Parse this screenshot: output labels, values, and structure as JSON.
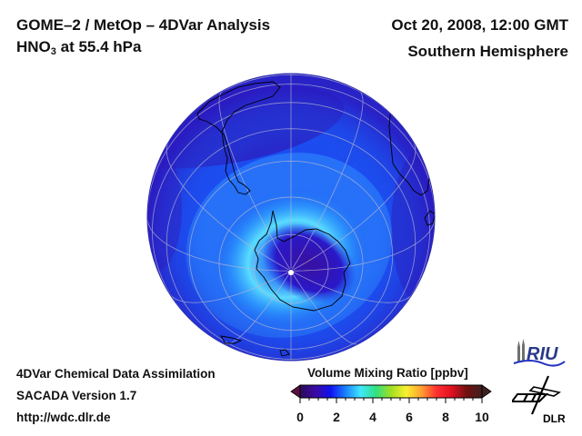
{
  "header": {
    "title_line1": "GOME–2 / MetOp – 4DVar Analysis",
    "species_main": "HNO",
    "species_sub": "3",
    "species_rest": " at 55.4 hPa",
    "datetime": "Oct 20, 2008, 12:00 GMT",
    "region": "Southern Hemisphere"
  },
  "footer": {
    "line1": "4DVar Chemical Data Assimilation",
    "line2": "SACADA Version 1.7",
    "line3": "http://wdc.dlr.de"
  },
  "colorbar": {
    "title": "Volume Mixing Ratio [ppbv]",
    "min": 0,
    "max": 10,
    "ticks": [
      "0",
      "2",
      "4",
      "6",
      "8",
      "10"
    ],
    "colors": [
      "#2a0a5a",
      "#3a0aa0",
      "#1010f0",
      "#1a80ff",
      "#40e8ff",
      "#30e080",
      "#a0e020",
      "#f8f030",
      "#ffa030",
      "#ff3030",
      "#e01020",
      "#701010",
      "#402020"
    ]
  },
  "map": {
    "projection": "orthographic",
    "hemisphere": "south",
    "field": "HNO3 volume mixing ratio",
    "graticule_color": "#b0b0c8",
    "coast_color": "#000000"
  },
  "logos": {
    "riu_text": "RIU",
    "dlr_text": "DLR"
  }
}
